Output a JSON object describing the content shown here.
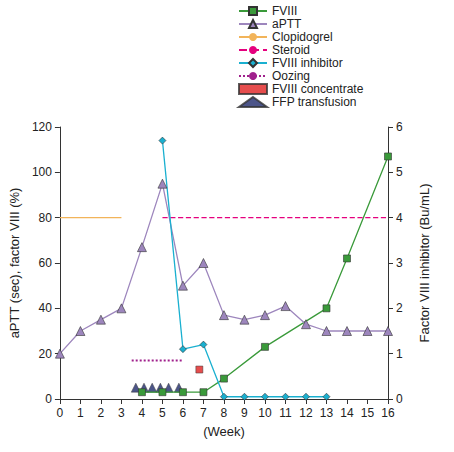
{
  "chart_data": {
    "type": "line",
    "x_label": "(Week)",
    "y_label": "aPTT (sec), factor VIII (%)",
    "y2_label": "Factor VIII inhibitor (Bu/mL)",
    "xlim": [
      0,
      16
    ],
    "xticks": [
      0,
      1,
      2,
      3,
      4,
      5,
      6,
      7,
      8,
      9,
      10,
      11,
      12,
      13,
      14,
      15,
      16
    ],
    "ylim": [
      0,
      120
    ],
    "yticks": [
      0,
      20,
      40,
      60,
      80,
      100,
      120
    ],
    "y2lim": [
      0,
      6
    ],
    "y2ticks": [
      0,
      1,
      2,
      3,
      4,
      5,
      6
    ],
    "grid": false,
    "legend": "top",
    "series": [
      {
        "name": "FVIII",
        "type": "line",
        "color": "#3a9a3a",
        "marker": "square",
        "line_style": "solid",
        "x": [
          4,
          5,
          6,
          7,
          8,
          10,
          13,
          14,
          16
        ],
        "values": [
          3,
          3,
          3,
          3,
          9,
          23,
          40,
          62,
          107
        ]
      },
      {
        "name": "aPTT",
        "type": "line",
        "color": "#9d86bd",
        "marker": "triangle",
        "line_style": "solid",
        "x": [
          0,
          1,
          2,
          3,
          4,
          5,
          6,
          7,
          8,
          9,
          10,
          11,
          12,
          13,
          14,
          15,
          16
        ],
        "values": [
          20,
          30,
          35,
          40,
          67,
          95,
          50,
          60,
          37,
          35,
          37,
          41,
          33,
          30,
          30,
          30,
          30
        ]
      },
      {
        "name": "Clopidogrel",
        "type": "line",
        "color": "#f2b45a",
        "marker": "none",
        "line_style": "solid",
        "x": [
          0,
          3
        ],
        "values": [
          80,
          80
        ]
      },
      {
        "name": "Steroid",
        "type": "line",
        "color": "#e5007e",
        "marker": "none",
        "line_style": "dashed",
        "x": [
          5,
          16
        ],
        "values": [
          80,
          80
        ]
      },
      {
        "name": "FVIII inhibitor",
        "type": "line",
        "color": "#1ab0d0",
        "marker": "diamond",
        "line_style": "solid",
        "axis": "y2",
        "x": [
          5,
          6,
          7,
          8,
          9,
          10,
          11,
          12,
          13
        ],
        "values": [
          5.7,
          1.1,
          1.2,
          0.05,
          0.05,
          0.05,
          0.05,
          0.05,
          0.05
        ]
      },
      {
        "name": "Oozing",
        "type": "line",
        "color": "#a0208c",
        "marker": "none",
        "line_style": "dotted",
        "x": [
          3.5,
          6
        ],
        "values": [
          17,
          17
        ]
      },
      {
        "name": "FVIII concentrate",
        "type": "scatter",
        "color": "#e02020",
        "marker": "square",
        "x": [
          6.8
        ],
        "values": [
          13
        ]
      },
      {
        "name": "FFP transfusion",
        "type": "scatter",
        "color": "#1f2a6b",
        "marker": "triangle",
        "x": [
          3.7,
          4.1,
          4.5,
          4.9,
          5.3,
          5.8
        ],
        "values": [
          5,
          5,
          5,
          5,
          5,
          5
        ]
      }
    ]
  }
}
